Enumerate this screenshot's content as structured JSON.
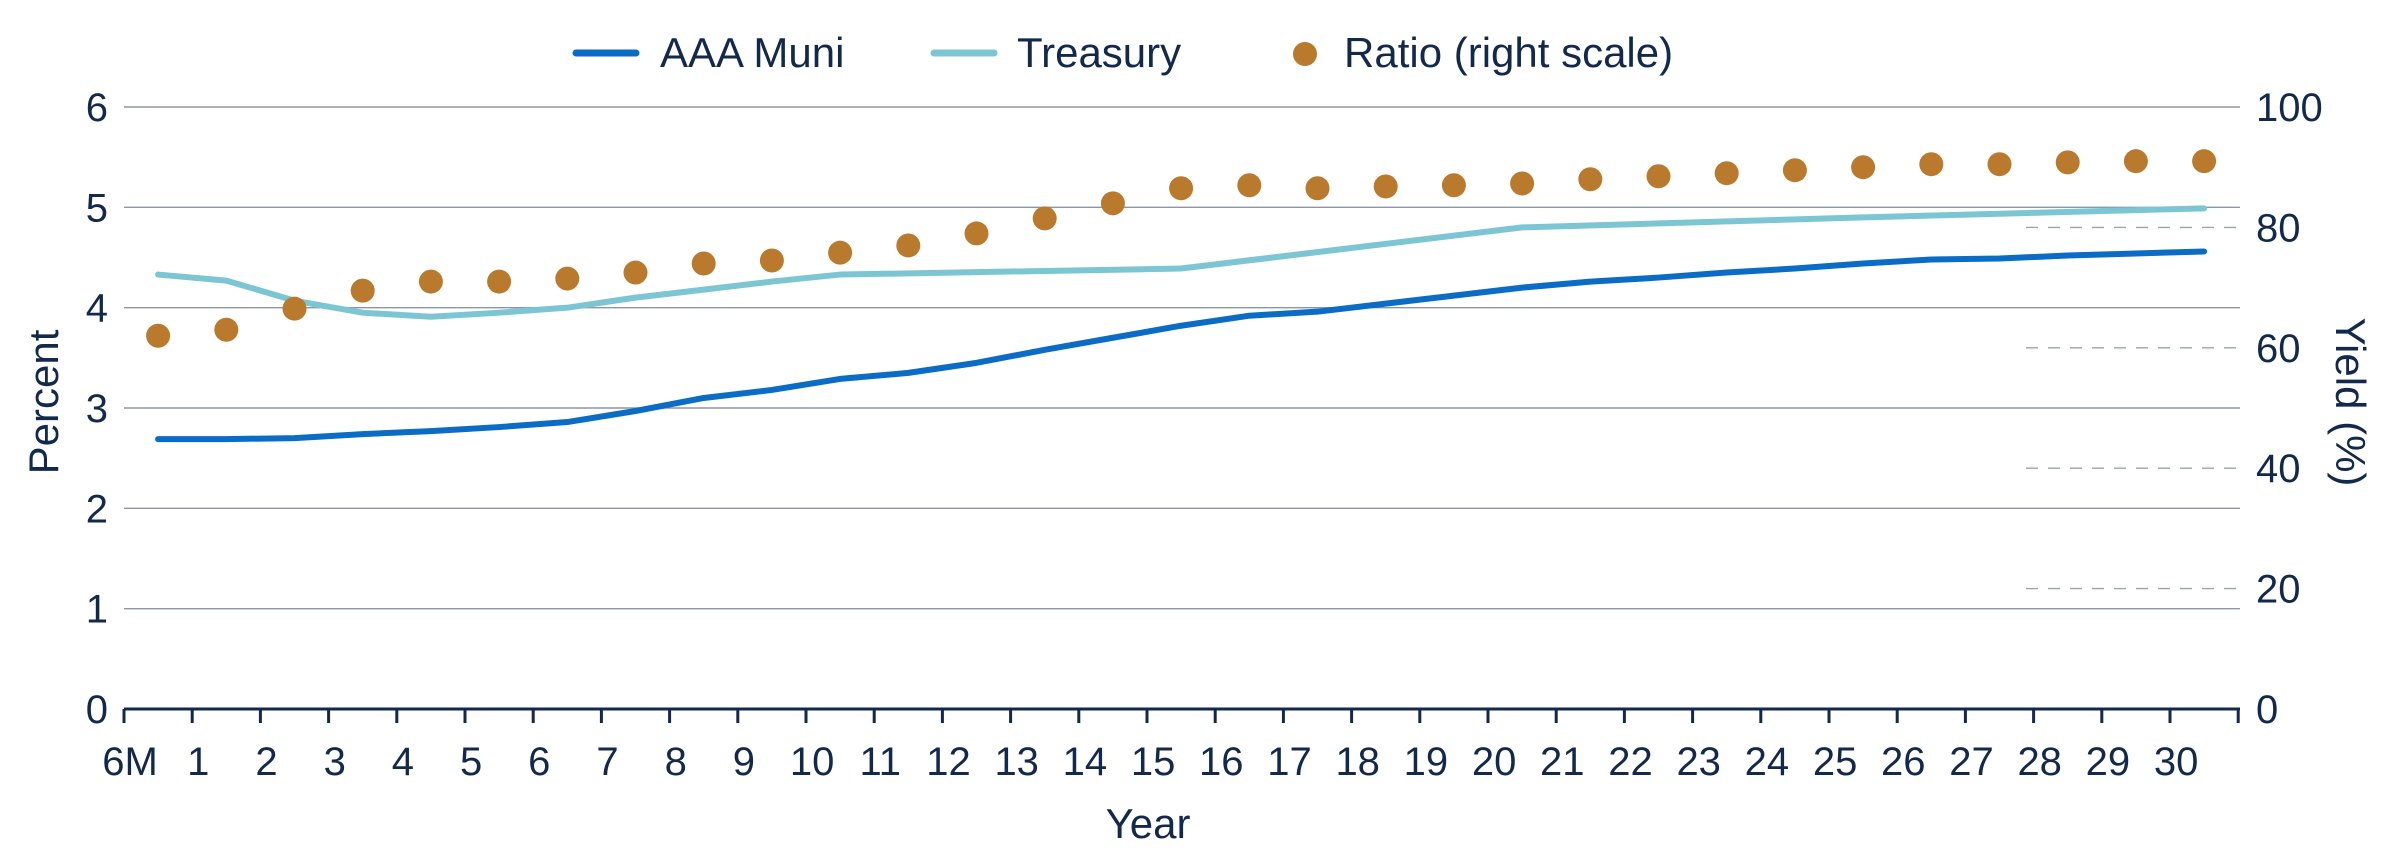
{
  "chart_data": {
    "type": "line",
    "x_categories": [
      "6M",
      "1",
      "2",
      "3",
      "4",
      "5",
      "6",
      "7",
      "8",
      "9",
      "10",
      "11",
      "12",
      "13",
      "14",
      "15",
      "16",
      "17",
      "18",
      "19",
      "20",
      "21",
      "22",
      "23",
      "24",
      "25",
      "26",
      "27",
      "28",
      "29",
      "30"
    ],
    "xlabel": "Year",
    "ylabel_left": "Percent",
    "ylabel_right": "Yield (%)",
    "y_left": {
      "lim": [
        0,
        6
      ],
      "ticks": [
        "0",
        "1",
        "2",
        "3",
        "4",
        "5",
        "6"
      ]
    },
    "y_right": {
      "lim": [
        0,
        100
      ],
      "ticks": [
        "0",
        "20",
        "40",
        "60",
        "80",
        "100"
      ]
    },
    "grid": true,
    "legend_position": "top-center",
    "series": [
      {
        "name": "AAA Muni",
        "kind": "line",
        "axis": "left",
        "color": "#0a6cc4",
        "x": [
          0.5,
          1.5,
          2.5,
          3.5,
          4.5,
          5.5,
          6.5,
          7.5,
          8.5,
          9.5,
          10.5,
          11.5,
          12.5,
          13.5,
          14.5,
          15.5,
          16.5,
          17.5,
          18.5,
          19.5,
          20.5,
          21.5,
          22.5,
          23.5,
          24.5,
          25.5,
          26.5,
          27.5,
          28.5,
          29.5,
          30.5
        ],
        "values": [
          2.69,
          2.69,
          2.7,
          2.74,
          2.77,
          2.81,
          2.86,
          2.97,
          3.1,
          3.18,
          3.29,
          3.35,
          3.45,
          3.58,
          3.7,
          3.82,
          3.92,
          3.96,
          4.04,
          4.12,
          4.2,
          4.26,
          4.3,
          4.35,
          4.39,
          4.44,
          4.48,
          4.49,
          4.52,
          4.54,
          4.56
        ]
      },
      {
        "name": "Treasury",
        "kind": "line",
        "axis": "left",
        "color": "#7cc6d4",
        "x": [
          0.5,
          1.5,
          2.5,
          3.5,
          4.5,
          5.5,
          6.5,
          7.5,
          8.5,
          9.5,
          10.5,
          15.5,
          20.5,
          25.5,
          30.5
        ],
        "values": [
          4.33,
          4.27,
          4.07,
          3.95,
          3.91,
          3.95,
          4.0,
          4.1,
          4.18,
          4.26,
          4.33,
          4.39,
          4.8,
          4.9,
          4.99
        ]
      },
      {
        "name": "Ratio (right scale)",
        "kind": "scatter",
        "axis": "right",
        "color": "#b97a2e",
        "x": [
          0.5,
          1.5,
          2.5,
          3.5,
          4.5,
          5.5,
          6.5,
          7.5,
          8.5,
          9.5,
          10.5,
          11.5,
          12.5,
          13.5,
          14.5,
          15.5,
          16.5,
          17.5,
          18.5,
          19.5,
          20.5,
          21.5,
          22.5,
          23.5,
          24.5,
          25.5,
          26.5,
          27.5,
          28.5,
          29.5,
          30.5
        ],
        "values": [
          62,
          63,
          66.5,
          69.5,
          71,
          71,
          71.5,
          72.5,
          74,
          74.5,
          75.8,
          77,
          79,
          81.5,
          84,
          86.5,
          87,
          86.5,
          86.8,
          87,
          87.3,
          88,
          88.5,
          89,
          89.5,
          90,
          90.5,
          90.5,
          90.8,
          91,
          91
        ]
      }
    ]
  }
}
